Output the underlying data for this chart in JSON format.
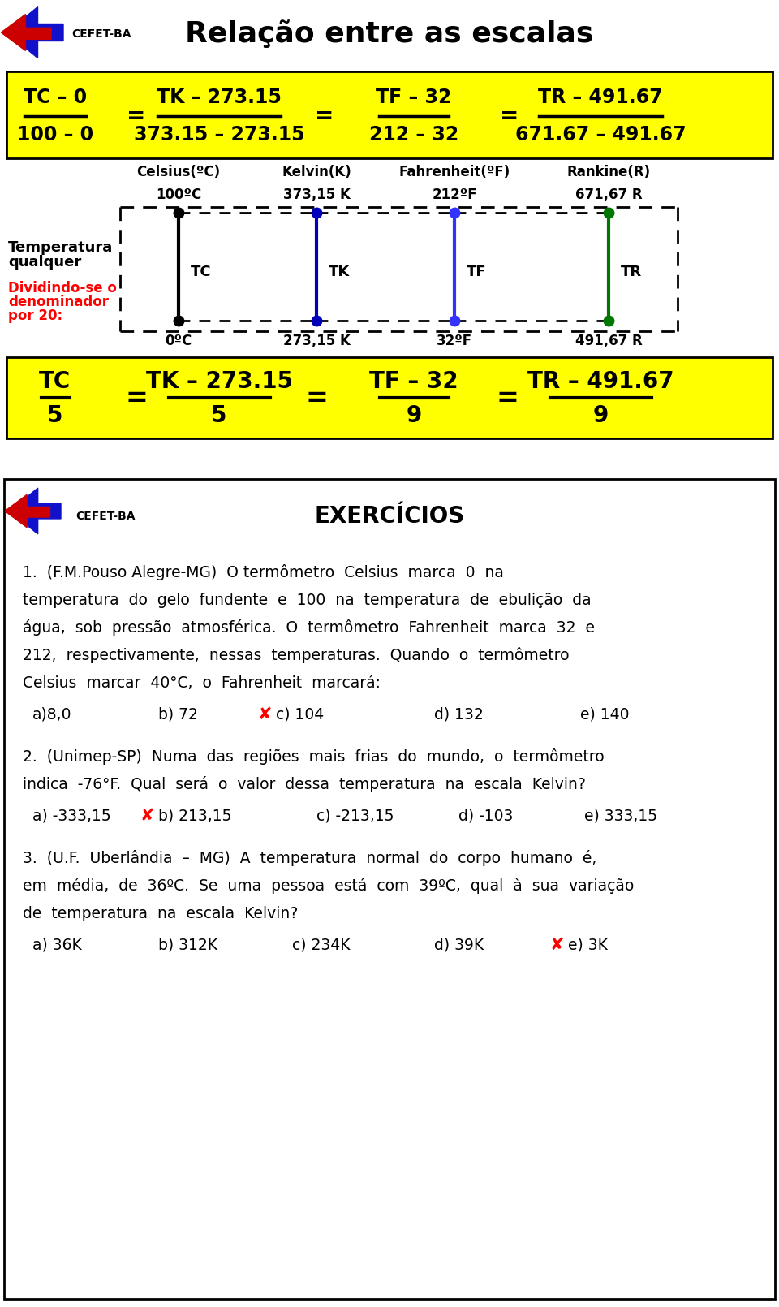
{
  "title": "Relação entre as escalas",
  "bg_color": "#ffffff",
  "yellow_bg": "#ffff00",
  "formula1_numerators": [
    "TC – 0",
    "TK – 273.15",
    "TF – 32",
    "TR – 491.67"
  ],
  "formula1_denominators": [
    "100 – 0",
    "373.15 – 273.15",
    "212 – 32",
    "671.67 – 491.67"
  ],
  "formula2_numerators": [
    "TC",
    "TK – 273.15",
    "TF – 32",
    "TR – 491.67"
  ],
  "formula2_denominators": [
    "5",
    "5",
    "9",
    "9"
  ],
  "scale_labels_top": [
    "Celsius(ºC)",
    "Kelvin(K)",
    "Fahrenheit(ºF)",
    "Rankine(R)"
  ],
  "scale_values_top": [
    "100ºC",
    "373,15 K",
    "212ºF",
    "671,67 R"
  ],
  "scale_labels_mid": [
    "TC",
    "TK",
    "TF",
    "TR"
  ],
  "scale_values_bot": [
    "0ºC",
    "273,15 K",
    "32ºF",
    "491,67 R"
  ],
  "thermometer_colors": [
    "#000000",
    "#0000bb",
    "#3333ff",
    "#007700"
  ],
  "left_label1": "Temperatura",
  "left_label2": "qualquer",
  "left_label3": "Dividindo-se o",
  "left_label4": "denominador",
  "left_label5": "por 20:",
  "ex_title": "EXERCÍCIOS",
  "ex1_intro": "1.  (F.M.Pouso Alegre-MG)  O termômetro  Celsius  marca  0  na",
  "ex1_line2": "temperatura  do  gelo  fundente  e  100  na  temperatura  de  ebulição  da",
  "ex1_line3": "água,  sob  pressão  atmosférica.  O  termômetro  Fahrenheit  marca  32  e",
  "ex1_line4": "212,  respectivamente,  nessas  temperaturas.  Quando  o  termômetro",
  "ex1_line5": "Celsius  marcar  40°C,  o  Fahrenheit  marcará:",
  "ex1_opt_a": "a)8,0",
  "ex1_opt_b": "b) 72",
  "ex1_opt_c": "c) 104",
  "ex1_opt_d": "d) 132",
  "ex1_opt_e": "e) 140",
  "ex1_correct": "c",
  "ex2_intro": "2.  (Unimep-SP)  Numa  das  regiões  mais  frias  do  mundo,  o  termômetro",
  "ex2_line2": "indica  -76°F.  Qual  será  o  valor  dessa  temperatura  na  escala  Kelvin?",
  "ex2_opt_a": "a) -333,15",
  "ex2_opt_b": "b) 213,15",
  "ex2_opt_c": "c) -213,15",
  "ex2_opt_d": "d) -103",
  "ex2_opt_e": "e) 333,15",
  "ex2_correct": "b",
  "ex3_intro": "3.  (U.F.  Uberlândia  –  MG)  A  temperatura  normal  do  corpo  humano  é,",
  "ex3_line2": "em  média,  de  36ºC.  Se  uma  pessoa  está  com  39ºC,  qual  à  sua  variação",
  "ex3_line3": "de  temperatura  na  escala  Kelvin?",
  "ex3_opt_a": "a) 36K",
  "ex3_opt_b": "b) 312K",
  "ex3_opt_c": "c) 234K",
  "ex3_opt_d": "d) 39K",
  "ex3_opt_e": "e) 3K",
  "ex3_correct": "e"
}
